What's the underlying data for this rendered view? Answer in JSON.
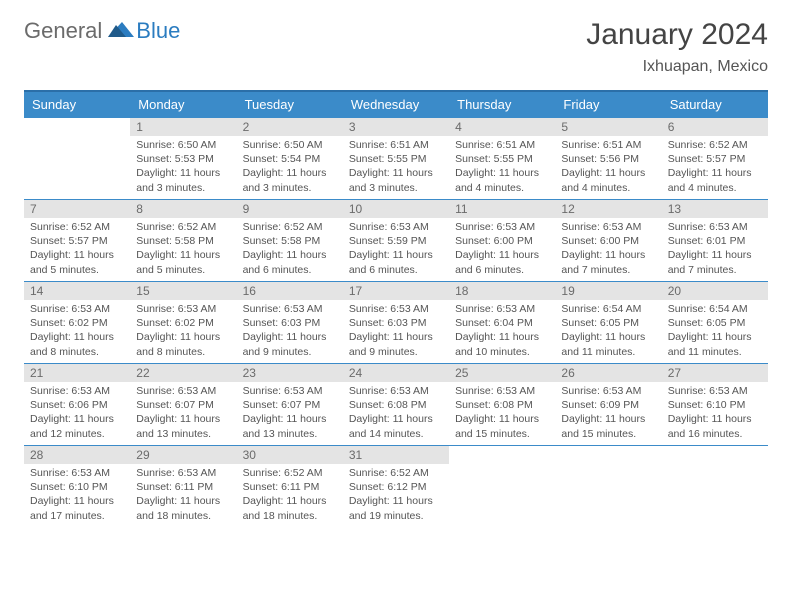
{
  "logo": {
    "part1": "General",
    "part2": "Blue"
  },
  "title": "January 2024",
  "location": "Ixhuapan, Mexico",
  "colors": {
    "header_bg": "#3b8bc9",
    "header_border": "#2b6fa8",
    "daynum_bg": "#e4e4e4",
    "text": "#555555",
    "logo_gray": "#6b6b6b",
    "logo_blue": "#2b7cc0"
  },
  "weekdays": [
    "Sunday",
    "Monday",
    "Tuesday",
    "Wednesday",
    "Thursday",
    "Friday",
    "Saturday"
  ],
  "weeks": [
    [
      null,
      {
        "n": "1",
        "sr": "6:50 AM",
        "ss": "5:53 PM",
        "dl": "11 hours and 3 minutes."
      },
      {
        "n": "2",
        "sr": "6:50 AM",
        "ss": "5:54 PM",
        "dl": "11 hours and 3 minutes."
      },
      {
        "n": "3",
        "sr": "6:51 AM",
        "ss": "5:55 PM",
        "dl": "11 hours and 3 minutes."
      },
      {
        "n": "4",
        "sr": "6:51 AM",
        "ss": "5:55 PM",
        "dl": "11 hours and 4 minutes."
      },
      {
        "n": "5",
        "sr": "6:51 AM",
        "ss": "5:56 PM",
        "dl": "11 hours and 4 minutes."
      },
      {
        "n": "6",
        "sr": "6:52 AM",
        "ss": "5:57 PM",
        "dl": "11 hours and 4 minutes."
      }
    ],
    [
      {
        "n": "7",
        "sr": "6:52 AM",
        "ss": "5:57 PM",
        "dl": "11 hours and 5 minutes."
      },
      {
        "n": "8",
        "sr": "6:52 AM",
        "ss": "5:58 PM",
        "dl": "11 hours and 5 minutes."
      },
      {
        "n": "9",
        "sr": "6:52 AM",
        "ss": "5:58 PM",
        "dl": "11 hours and 6 minutes."
      },
      {
        "n": "10",
        "sr": "6:53 AM",
        "ss": "5:59 PM",
        "dl": "11 hours and 6 minutes."
      },
      {
        "n": "11",
        "sr": "6:53 AM",
        "ss": "6:00 PM",
        "dl": "11 hours and 6 minutes."
      },
      {
        "n": "12",
        "sr": "6:53 AM",
        "ss": "6:00 PM",
        "dl": "11 hours and 7 minutes."
      },
      {
        "n": "13",
        "sr": "6:53 AM",
        "ss": "6:01 PM",
        "dl": "11 hours and 7 minutes."
      }
    ],
    [
      {
        "n": "14",
        "sr": "6:53 AM",
        "ss": "6:02 PM",
        "dl": "11 hours and 8 minutes."
      },
      {
        "n": "15",
        "sr": "6:53 AM",
        "ss": "6:02 PM",
        "dl": "11 hours and 8 minutes."
      },
      {
        "n": "16",
        "sr": "6:53 AM",
        "ss": "6:03 PM",
        "dl": "11 hours and 9 minutes."
      },
      {
        "n": "17",
        "sr": "6:53 AM",
        "ss": "6:03 PM",
        "dl": "11 hours and 9 minutes."
      },
      {
        "n": "18",
        "sr": "6:53 AM",
        "ss": "6:04 PM",
        "dl": "11 hours and 10 minutes."
      },
      {
        "n": "19",
        "sr": "6:54 AM",
        "ss": "6:05 PM",
        "dl": "11 hours and 11 minutes."
      },
      {
        "n": "20",
        "sr": "6:54 AM",
        "ss": "6:05 PM",
        "dl": "11 hours and 11 minutes."
      }
    ],
    [
      {
        "n": "21",
        "sr": "6:53 AM",
        "ss": "6:06 PM",
        "dl": "11 hours and 12 minutes."
      },
      {
        "n": "22",
        "sr": "6:53 AM",
        "ss": "6:07 PM",
        "dl": "11 hours and 13 minutes."
      },
      {
        "n": "23",
        "sr": "6:53 AM",
        "ss": "6:07 PM",
        "dl": "11 hours and 13 minutes."
      },
      {
        "n": "24",
        "sr": "6:53 AM",
        "ss": "6:08 PM",
        "dl": "11 hours and 14 minutes."
      },
      {
        "n": "25",
        "sr": "6:53 AM",
        "ss": "6:08 PM",
        "dl": "11 hours and 15 minutes."
      },
      {
        "n": "26",
        "sr": "6:53 AM",
        "ss": "6:09 PM",
        "dl": "11 hours and 15 minutes."
      },
      {
        "n": "27",
        "sr": "6:53 AM",
        "ss": "6:10 PM",
        "dl": "11 hours and 16 minutes."
      }
    ],
    [
      {
        "n": "28",
        "sr": "6:53 AM",
        "ss": "6:10 PM",
        "dl": "11 hours and 17 minutes."
      },
      {
        "n": "29",
        "sr": "6:53 AM",
        "ss": "6:11 PM",
        "dl": "11 hours and 18 minutes."
      },
      {
        "n": "30",
        "sr": "6:52 AM",
        "ss": "6:11 PM",
        "dl": "11 hours and 18 minutes."
      },
      {
        "n": "31",
        "sr": "6:52 AM",
        "ss": "6:12 PM",
        "dl": "11 hours and 19 minutes."
      },
      null,
      null,
      null
    ]
  ],
  "labels": {
    "sunrise": "Sunrise:",
    "sunset": "Sunset:",
    "daylight": "Daylight:"
  }
}
